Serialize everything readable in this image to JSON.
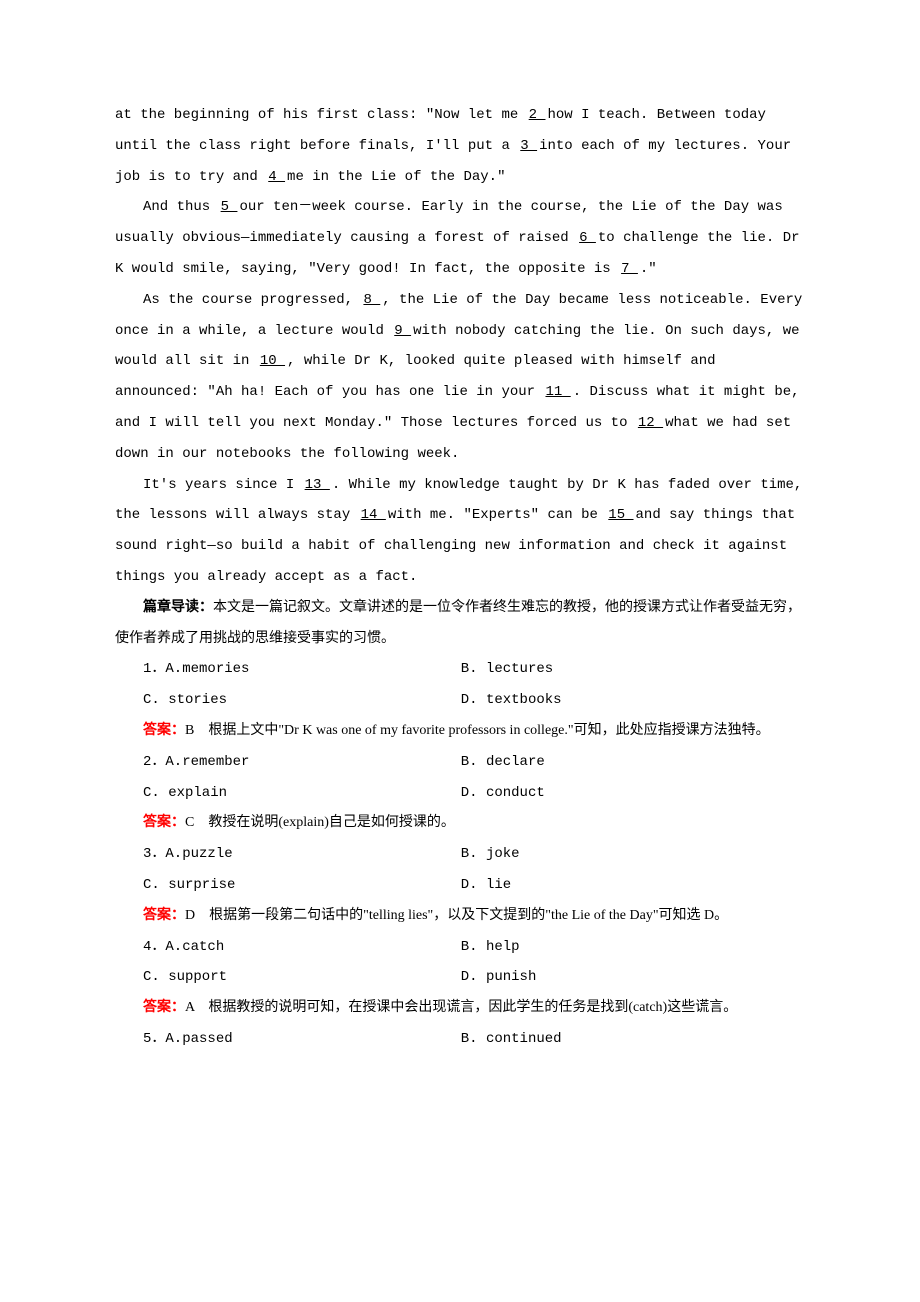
{
  "passage": {
    "p1": "at the beginning of his first class: \"Now let me ",
    "blank2": "  2  ",
    "p1b": " how I teach. Between today until the class right before finals, I'll put a ",
    "blank3": "  3  ",
    "p1c": " into each of my lectures. Your job is to try and ",
    "blank4": "  4  ",
    "p1d": " me in the Lie of the Day.\"",
    "p2a": "And thus ",
    "blank5": "  5  ",
    "p2b": " our ten－week course. Early in the course, the Lie of the Day was usually obvious—immediately causing a forest of raised ",
    "blank6": "  6  ",
    "p2c": " to challenge the lie. Dr K would smile, saying, \"Very good! In fact, the opposite is ",
    "blank7": "  7  ",
    "p2d": ".\"",
    "p3a": "As the course progressed, ",
    "blank8": "  8  ",
    "p3b": ",  the Lie of the Day became less noticeable. Every once in a while, a lecture would ",
    "blank9": "  9  ",
    "p3c": " with nobody catching the lie. On such days, we would all sit in ",
    "blank10": "  10  ",
    "p3d": ",  while Dr K, looked quite pleased with himself and announced: \"Ah ha! Each of you has one lie in your ",
    "blank11": "  11  ",
    "p3e": ". Discuss what it might be, and I will tell you next Monday.\" Those lectures forced us to ",
    "blank12": "  12  ",
    "p3f": " what we had set down in our notebooks the following week.",
    "p4a": "It's years since I ",
    "blank13": "  13  ",
    "p4b": ". While my knowledge taught by Dr K has faded over time, the lessons will always stay ",
    "blank14": "  14  ",
    "p4c": " with me. \"Experts\" can be ",
    "blank15": "  15  ",
    "p4d": " and say things that sound right—so build a habit of challenging new information and check it against things you already accept as a fact."
  },
  "guide": {
    "label": "篇章导读：",
    "text": "本文是一篇记叙文。文章讲述的是一位令作者终生难忘的教授，他的授课方式让作者受益无穷，使作者养成了用挑战的思维接受事实的习惯。"
  },
  "questions": [
    {
      "num": "1",
      "optA": "A.memories",
      "optB": "B. lectures",
      "optC": "C. stories",
      "optD": "D. textbooks",
      "answerLabel": "答案：",
      "answerLetter": "B",
      "explanation": "　根据上文中\"Dr K was one of my favorite professors in college.\"可知，此处应指授课方法独特。"
    },
    {
      "num": "2",
      "optA": "A.remember",
      "optB": "B. declare",
      "optC": "C. explain",
      "optD": "D. conduct",
      "answerLabel": "答案：",
      "answerLetter": "C",
      "explanation": "　教授在说明(explain)自己是如何授课的。"
    },
    {
      "num": "3",
      "optA": "A.puzzle",
      "optB": "B. joke",
      "optC": "C. surprise",
      "optD": "D. lie",
      "answerLabel": "答案：",
      "answerLetter": "D",
      "explanation": "　根据第一段第二句话中的\"telling lies\"，以及下文提到的\"the Lie of the Day\"可知选 D。"
    },
    {
      "num": "4",
      "optA": "A.catch",
      "optB": "B. help",
      "optC": "C. support",
      "optD": "D. punish",
      "answerLabel": "答案：",
      "answerLetter": "A",
      "explanation": "　根据教授的说明可知，在授课中会出现谎言，因此学生的任务是找到(catch)这些谎言。"
    },
    {
      "num": "5",
      "optA": "A.passed",
      "optB": "B. continued",
      "optC": "",
      "optD": "",
      "answerLabel": "",
      "answerLetter": "",
      "explanation": ""
    }
  ],
  "colors": {
    "answer": "#ff0000",
    "text": "#000000",
    "bg": "#ffffff"
  }
}
